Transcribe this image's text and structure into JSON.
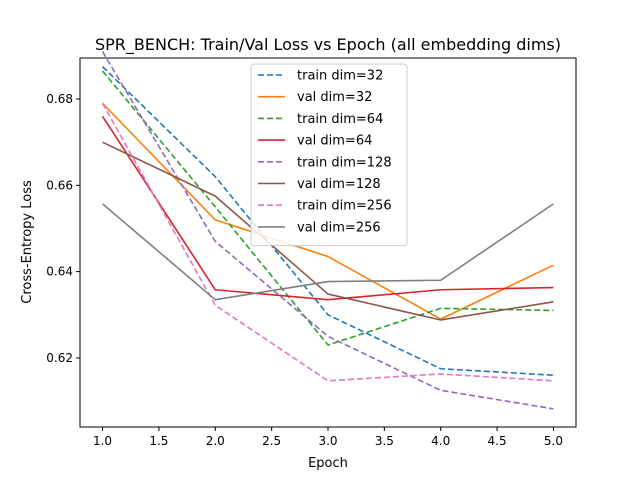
{
  "chart_data": {
    "type": "line",
    "title": "SPR_BENCH: Train/Val Loss vs Epoch (all embedding dims)",
    "xlabel": "Epoch",
    "ylabel": "Cross-Entropy Loss",
    "xlim": [
      0.8,
      5.2
    ],
    "ylim": [
      0.604,
      0.6895
    ],
    "grid": false,
    "legend_position": "top-center",
    "x": [
      1,
      2,
      3,
      4,
      5
    ],
    "x_ticks": [
      1.0,
      1.5,
      2.0,
      2.5,
      3.0,
      3.5,
      4.0,
      4.5,
      5.0
    ],
    "x_tick_labels": [
      "1.0",
      "1.5",
      "2.0",
      "2.5",
      "3.0",
      "3.5",
      "4.0",
      "4.5",
      "5.0"
    ],
    "y_ticks": [
      0.62,
      0.64,
      0.66,
      0.68
    ],
    "y_tick_labels": [
      "0.62",
      "0.64",
      "0.66",
      "0.68"
    ],
    "series": [
      {
        "name": "train dim=32",
        "color": "#1f77b4",
        "dash": true,
        "values": [
          0.6875,
          0.662,
          0.63,
          0.6175,
          0.616
        ]
      },
      {
        "name": "val dim=32",
        "color": "#ff7f0e",
        "dash": false,
        "values": [
          0.679,
          0.652,
          0.6435,
          0.629,
          0.6415
        ]
      },
      {
        "name": "train dim=64",
        "color": "#2ca02c",
        "dash": true,
        "values": [
          0.6865,
          0.655,
          0.623,
          0.6315,
          0.631
        ]
      },
      {
        "name": "val dim=64",
        "color": "#d62728",
        "dash": false,
        "values": [
          0.676,
          0.6358,
          0.6335,
          0.6358,
          0.6363
        ]
      },
      {
        "name": "train dim=128",
        "color": "#9467bd",
        "dash": true,
        "values": [
          0.691,
          0.647,
          0.625,
          0.6125,
          0.6082
        ]
      },
      {
        "name": "val dim=128",
        "color": "#8c564b",
        "dash": false,
        "values": [
          0.67,
          0.6575,
          0.6348,
          0.6288,
          0.633
        ]
      },
      {
        "name": "train dim=256",
        "color": "#e377c2",
        "dash": true,
        "values": [
          0.679,
          0.6322,
          0.6147,
          0.6163,
          0.6147
        ]
      },
      {
        "name": "val dim=256",
        "color": "#7f7f7f",
        "dash": false,
        "values": [
          0.6557,
          0.6335,
          0.6377,
          0.638,
          0.6557
        ]
      }
    ]
  }
}
